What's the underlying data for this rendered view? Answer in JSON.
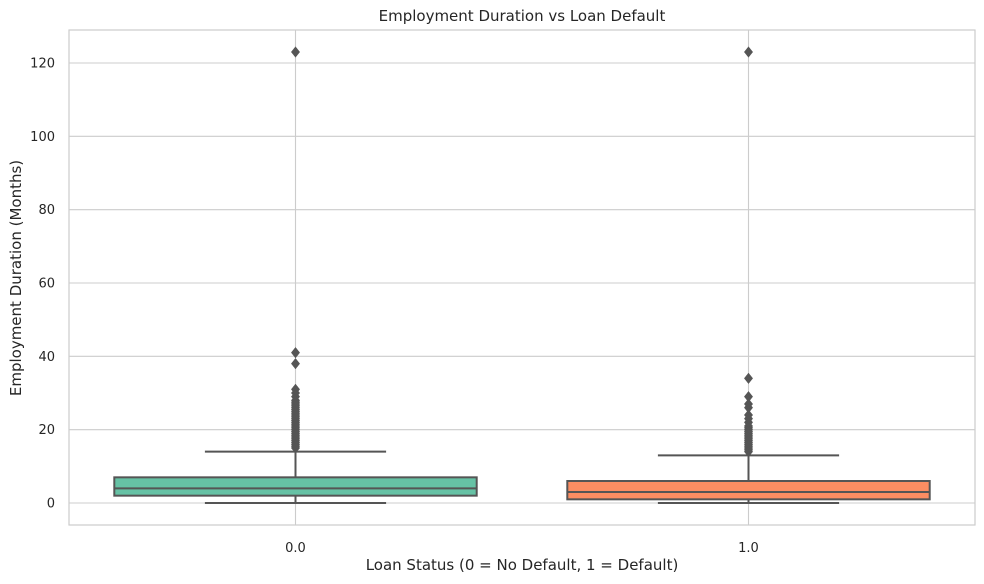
{
  "chart_data": {
    "type": "box",
    "title": "Employment Duration vs Loan Default",
    "xlabel": "Loan Status (0 = No Default, 1 = Default)",
    "ylabel": "Employment Duration (Months)",
    "ylim": [
      -6,
      129
    ],
    "yticks": [
      0,
      20,
      40,
      60,
      80,
      100,
      120
    ],
    "grid": true,
    "categories": [
      "0.0",
      "1.0"
    ],
    "boxes": [
      {
        "category": "0.0",
        "color": "#66c2a5",
        "whisker_low": 0,
        "q1": 2,
        "median": 4,
        "q3": 7,
        "whisker_high": 14,
        "outliers": [
          15,
          15.5,
          16,
          16.5,
          17,
          17.5,
          18,
          18.5,
          19,
          19.5,
          20,
          20.5,
          21,
          21.5,
          22,
          22.5,
          23,
          23.5,
          24,
          24.5,
          25,
          25.5,
          26,
          26.5,
          27,
          27.5,
          28,
          29,
          30,
          31,
          38,
          41,
          123
        ]
      },
      {
        "category": "1.0",
        "color": "#fc8d62",
        "whisker_low": 0,
        "q1": 1,
        "median": 3,
        "q3": 6,
        "whisker_high": 13,
        "outliers": [
          14,
          14.5,
          15,
          15.5,
          16,
          16.5,
          17,
          17.5,
          18,
          18.5,
          19,
          19.5,
          20,
          20.5,
          21,
          22,
          23,
          24,
          26,
          27,
          29,
          34,
          123
        ]
      }
    ]
  }
}
